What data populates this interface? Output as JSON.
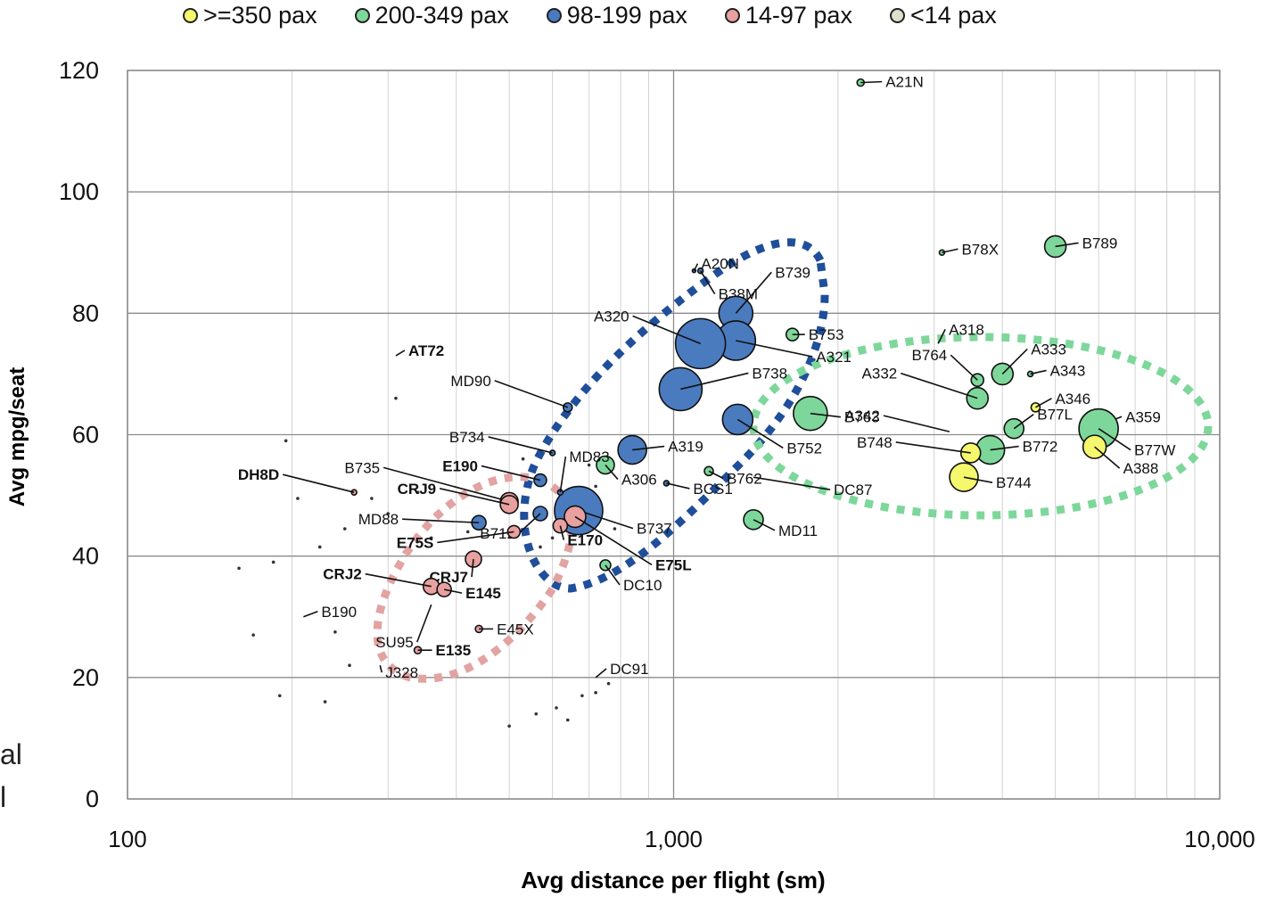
{
  "chart_data": {
    "type": "scatter",
    "xlabel": "Avg distance per flight (sm)",
    "ylabel": "Avg mpg/seat",
    "xscale": "log",
    "xlim": [
      100,
      10000
    ],
    "ylim": [
      0,
      120
    ],
    "x_ticks": [
      100,
      1000,
      10000
    ],
    "x_tick_labels": [
      "100",
      "1,000",
      "10,000"
    ],
    "y_ticks": [
      0,
      20,
      40,
      60,
      80,
      100,
      120
    ],
    "grid": true,
    "legend_position": "top",
    "legend": [
      {
        "key": "g350",
        "label": ">=350 pax",
        "color": "#f5f76c"
      },
      {
        "key": "g200",
        "label": "200-349 pax",
        "color": "#7ed79a"
      },
      {
        "key": "g98",
        "label": "98-199 pax",
        "color": "#4a7bbf"
      },
      {
        "key": "g14",
        "label": "14-97 pax",
        "color": "#e8a0a0"
      },
      {
        "key": "g0",
        "label": "<14 pax",
        "color": "#dde0cc"
      }
    ],
    "points": [
      {
        "label": "A21N",
        "x": 2200,
        "y": 118,
        "group": "g200",
        "size": 4
      },
      {
        "label": "B789",
        "x": 5000,
        "y": 91,
        "group": "g200",
        "size": 12
      },
      {
        "label": "B78X",
        "x": 3100,
        "y": 90,
        "group": "g200",
        "size": 3
      },
      {
        "label": "A20N",
        "x": 1090,
        "y": 87,
        "group": "g98",
        "size": 2
      },
      {
        "label": "B38M",
        "x": 1120,
        "y": 87,
        "group": "g98",
        "size": 3
      },
      {
        "label": "B739",
        "x": 1300,
        "y": 80,
        "group": "g98",
        "size": 19
      },
      {
        "label": "B753",
        "x": 1650,
        "y": 76.5,
        "group": "g200",
        "size": 7
      },
      {
        "label": "A321",
        "x": 1300,
        "y": 75.5,
        "group": "g98",
        "size": 22
      },
      {
        "label": "A320",
        "x": 1120,
        "y": 75,
        "group": "g98",
        "size": 28
      },
      {
        "label": "B738",
        "x": 1030,
        "y": 67.5,
        "group": "g98",
        "size": 24
      },
      {
        "label": "B752",
        "x": 1310,
        "y": 62.5,
        "group": "g98",
        "size": 17
      },
      {
        "label": "B763",
        "x": 1780,
        "y": 63.5,
        "group": "g200",
        "size": 19
      },
      {
        "label": "A319",
        "x": 840,
        "y": 57.5,
        "group": "g98",
        "size": 16
      },
      {
        "label": "A306",
        "x": 750,
        "y": 55,
        "group": "g200",
        "size": 10
      },
      {
        "label": "B762",
        "x": 1160,
        "y": 54,
        "group": "g200",
        "size": 5
      },
      {
        "label": "BCS1",
        "x": 970,
        "y": 52,
        "group": "g98",
        "size": 3
      },
      {
        "label": "MD11",
        "x": 1400,
        "y": 46,
        "group": "g200",
        "size": 11
      },
      {
        "label": "B737",
        "x": 670,
        "y": 47.5,
        "group": "g98",
        "size": 27
      },
      {
        "label": "E75L",
        "x": 660,
        "y": 46.5,
        "group": "g14",
        "size": 12
      },
      {
        "label": "E170",
        "x": 620,
        "y": 45,
        "group": "g14",
        "size": 8
      },
      {
        "label": "DC10",
        "x": 750,
        "y": 38.5,
        "group": "g200",
        "size": 6
      },
      {
        "label": "MD83",
        "x": 620,
        "y": 50.5,
        "group": "g98",
        "size": 3
      },
      {
        "label": "MD90",
        "x": 640,
        "y": 64.5,
        "group": "g98",
        "size": 5
      },
      {
        "label": "B734",
        "x": 600,
        "y": 57,
        "group": "g98",
        "size": 3
      },
      {
        "label": "E190",
        "x": 570,
        "y": 52.5,
        "group": "g98",
        "size": 7
      },
      {
        "label": "B712",
        "x": 570,
        "y": 47,
        "group": "g98",
        "size": 8
      },
      {
        "label": "B735",
        "x": 500,
        "y": 49,
        "group": "g14",
        "size": 10
      },
      {
        "label": "CRJ9",
        "x": 500,
        "y": 48.5,
        "group": "g14",
        "size": 10
      },
      {
        "label": "MD88",
        "x": 440,
        "y": 45.5,
        "group": "g98",
        "size": 8
      },
      {
        "label": "E75S",
        "x": 510,
        "y": 44,
        "group": "g14",
        "size": 7
      },
      {
        "label": "CRJ7",
        "x": 430,
        "y": 39.5,
        "group": "g14",
        "size": 9
      },
      {
        "label": "CRJ2",
        "x": 360,
        "y": 35,
        "group": "g14",
        "size": 9
      },
      {
        "label": "E145",
        "x": 380,
        "y": 34.5,
        "group": "g14",
        "size": 8
      },
      {
        "label": "E45X",
        "x": 440,
        "y": 28,
        "group": "g14",
        "size": 4
      },
      {
        "label": "E135",
        "x": 340,
        "y": 24.5,
        "group": "g14",
        "size": 4
      },
      {
        "label": "DH8D",
        "x": 260,
        "y": 50.5,
        "group": "g14",
        "size": 3
      },
      {
        "label": "A318",
        "x": 3050,
        "y": 75,
        "group": "g98",
        "size": 0
      },
      {
        "label": "A333",
        "x": 4000,
        "y": 70,
        "group": "g200",
        "size": 12
      },
      {
        "label": "A343",
        "x": 4500,
        "y": 70,
        "group": "g200",
        "size": 3
      },
      {
        "label": "B764",
        "x": 3600,
        "y": 69,
        "group": "g200",
        "size": 7
      },
      {
        "label": "A332",
        "x": 3600,
        "y": 66,
        "group": "g200",
        "size": 12
      },
      {
        "label": "A346",
        "x": 4600,
        "y": 64.5,
        "group": "g350",
        "size": 5
      },
      {
        "label": "A359",
        "x": 6000,
        "y": 61.5,
        "group": "g200",
        "size": 12
      },
      {
        "label": "B77W",
        "x": 6000,
        "y": 61,
        "group": "g200",
        "size": 22
      },
      {
        "label": "B77L",
        "x": 4200,
        "y": 61,
        "group": "g200",
        "size": 11
      },
      {
        "label": "A342",
        "x": 3200,
        "y": 60.5,
        "group": "g200",
        "size": 0
      },
      {
        "label": "B772",
        "x": 3800,
        "y": 57.5,
        "group": "g200",
        "size": 16
      },
      {
        "label": "B748",
        "x": 3500,
        "y": 57,
        "group": "g350",
        "size": 11
      },
      {
        "label": "B744",
        "x": 3400,
        "y": 53,
        "group": "g350",
        "size": 16
      },
      {
        "label": "A388",
        "x": 5900,
        "y": 58,
        "group": "g350",
        "size": 13
      },
      {
        "label": "DC87",
        "x": 1400,
        "y": 53,
        "group": "g200",
        "size": 0
      },
      {
        "label": "AT72",
        "x": 310,
        "y": 73,
        "group": "g14",
        "size": 0
      },
      {
        "label": "B190",
        "x": 210,
        "y": 30,
        "group": "g0",
        "size": 0
      },
      {
        "label": "SU95",
        "x": 360,
        "y": 32,
        "group": "g14",
        "size": 0
      },
      {
        "label": "J328",
        "x": 290,
        "y": 22,
        "group": "g0",
        "size": 0
      },
      {
        "label": "DC91",
        "x": 720,
        "y": 20,
        "group": "g98",
        "size": 0
      }
    ],
    "small_points": [
      {
        "x": 195,
        "y": 59
      },
      {
        "x": 205,
        "y": 49.5
      },
      {
        "x": 225,
        "y": 41.5
      },
      {
        "x": 240,
        "y": 27.5
      },
      {
        "x": 250,
        "y": 44.5
      },
      {
        "x": 255,
        "y": 22
      },
      {
        "x": 280,
        "y": 49.5
      },
      {
        "x": 300,
        "y": 47
      },
      {
        "x": 310,
        "y": 66
      },
      {
        "x": 340,
        "y": 50.5
      },
      {
        "x": 360,
        "y": 43
      },
      {
        "x": 420,
        "y": 44
      },
      {
        "x": 530,
        "y": 56
      },
      {
        "x": 570,
        "y": 41.5
      },
      {
        "x": 600,
        "y": 43
      },
      {
        "x": 690,
        "y": 51
      },
      {
        "x": 700,
        "y": 55
      },
      {
        "x": 720,
        "y": 51.5
      },
      {
        "x": 760,
        "y": 54.5
      },
      {
        "x": 780,
        "y": 44.5
      },
      {
        "x": 185,
        "y": 39
      },
      {
        "x": 190,
        "y": 17
      },
      {
        "x": 230,
        "y": 16
      },
      {
        "x": 500,
        "y": 12
      },
      {
        "x": 560,
        "y": 14
      },
      {
        "x": 610,
        "y": 15
      },
      {
        "x": 640,
        "y": 13
      },
      {
        "x": 680,
        "y": 17
      },
      {
        "x": 720,
        "y": 17.5
      },
      {
        "x": 760,
        "y": 19
      },
      {
        "x": 160,
        "y": 38
      },
      {
        "x": 170,
        "y": 27
      }
    ]
  },
  "edge_text": {
    "line1": "al",
    "line2": "l"
  }
}
